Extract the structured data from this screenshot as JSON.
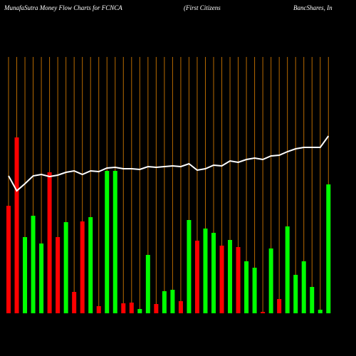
{
  "chart_data": {
    "type": "money-flow",
    "title": "MunafaSutra  Money Flow  Charts for FCNCA",
    "subtitle": "(First Citizens",
    "subtitle2": "BancShares, In",
    "categories": [
      null,
      null,
      null,
      null,
      null,
      null,
      null,
      null,
      null,
      null,
      null,
      null,
      null,
      null,
      null,
      null,
      null,
      null,
      null,
      null,
      null,
      null,
      null,
      null,
      null,
      null,
      null,
      null,
      null,
      null,
      null,
      null,
      null,
      null,
      null,
      null,
      null,
      null,
      null,
      null
    ],
    "ylim": [
      0,
      360
    ],
    "grid": true,
    "grid_color": "#b86a00",
    "series": [
      {
        "type": "bar",
        "values": [
          151,
          247,
          107,
          137,
          98,
          198,
          107,
          128,
          30,
          129,
          135,
          10,
          200,
          200,
          14,
          15,
          6,
          82,
          13,
          31,
          33,
          17,
          131,
          102,
          119,
          113,
          95,
          103,
          93,
          73,
          64,
          2,
          91,
          20,
          122,
          54,
          73,
          37,
          5,
          181
        ],
        "colors": [
          "#ff0000",
          "#ff0000",
          "#00ff00",
          "#00ff00",
          "#00ff00",
          "#ff0000",
          "#ff0000",
          "#00ff00",
          "#ff0000",
          "#ff0000",
          "#00ff00",
          "#ff0000",
          "#00ff00",
          "#00ff00",
          "#ff0000",
          "#ff0000",
          "#00ff00",
          "#00ff00",
          "#ff0000",
          "#00ff00",
          "#00ff00",
          "#ff0000",
          "#00ff00",
          "#ff0000",
          "#00ff00",
          "#00ff00",
          "#ff0000",
          "#00ff00",
          "#ff0000",
          "#00ff00",
          "#00ff00",
          "#ff0000",
          "#00ff00",
          "#ff0000",
          "#00ff00",
          "#00ff00",
          "#00ff00",
          "#00ff00",
          "#00ff00",
          "#00ff00"
        ]
      },
      {
        "type": "line",
        "color": "#ffffff",
        "values": [
          193,
          172,
          182,
          193,
          195,
          192,
          194,
          198,
          200,
          195,
          200,
          199,
          204,
          205,
          203,
          203,
          202,
          206,
          205,
          206,
          207,
          206,
          210,
          201,
          203,
          208,
          207,
          214,
          212,
          216,
          218,
          216,
          221,
          222,
          227,
          231,
          233,
          233,
          233,
          249
        ]
      }
    ]
  }
}
